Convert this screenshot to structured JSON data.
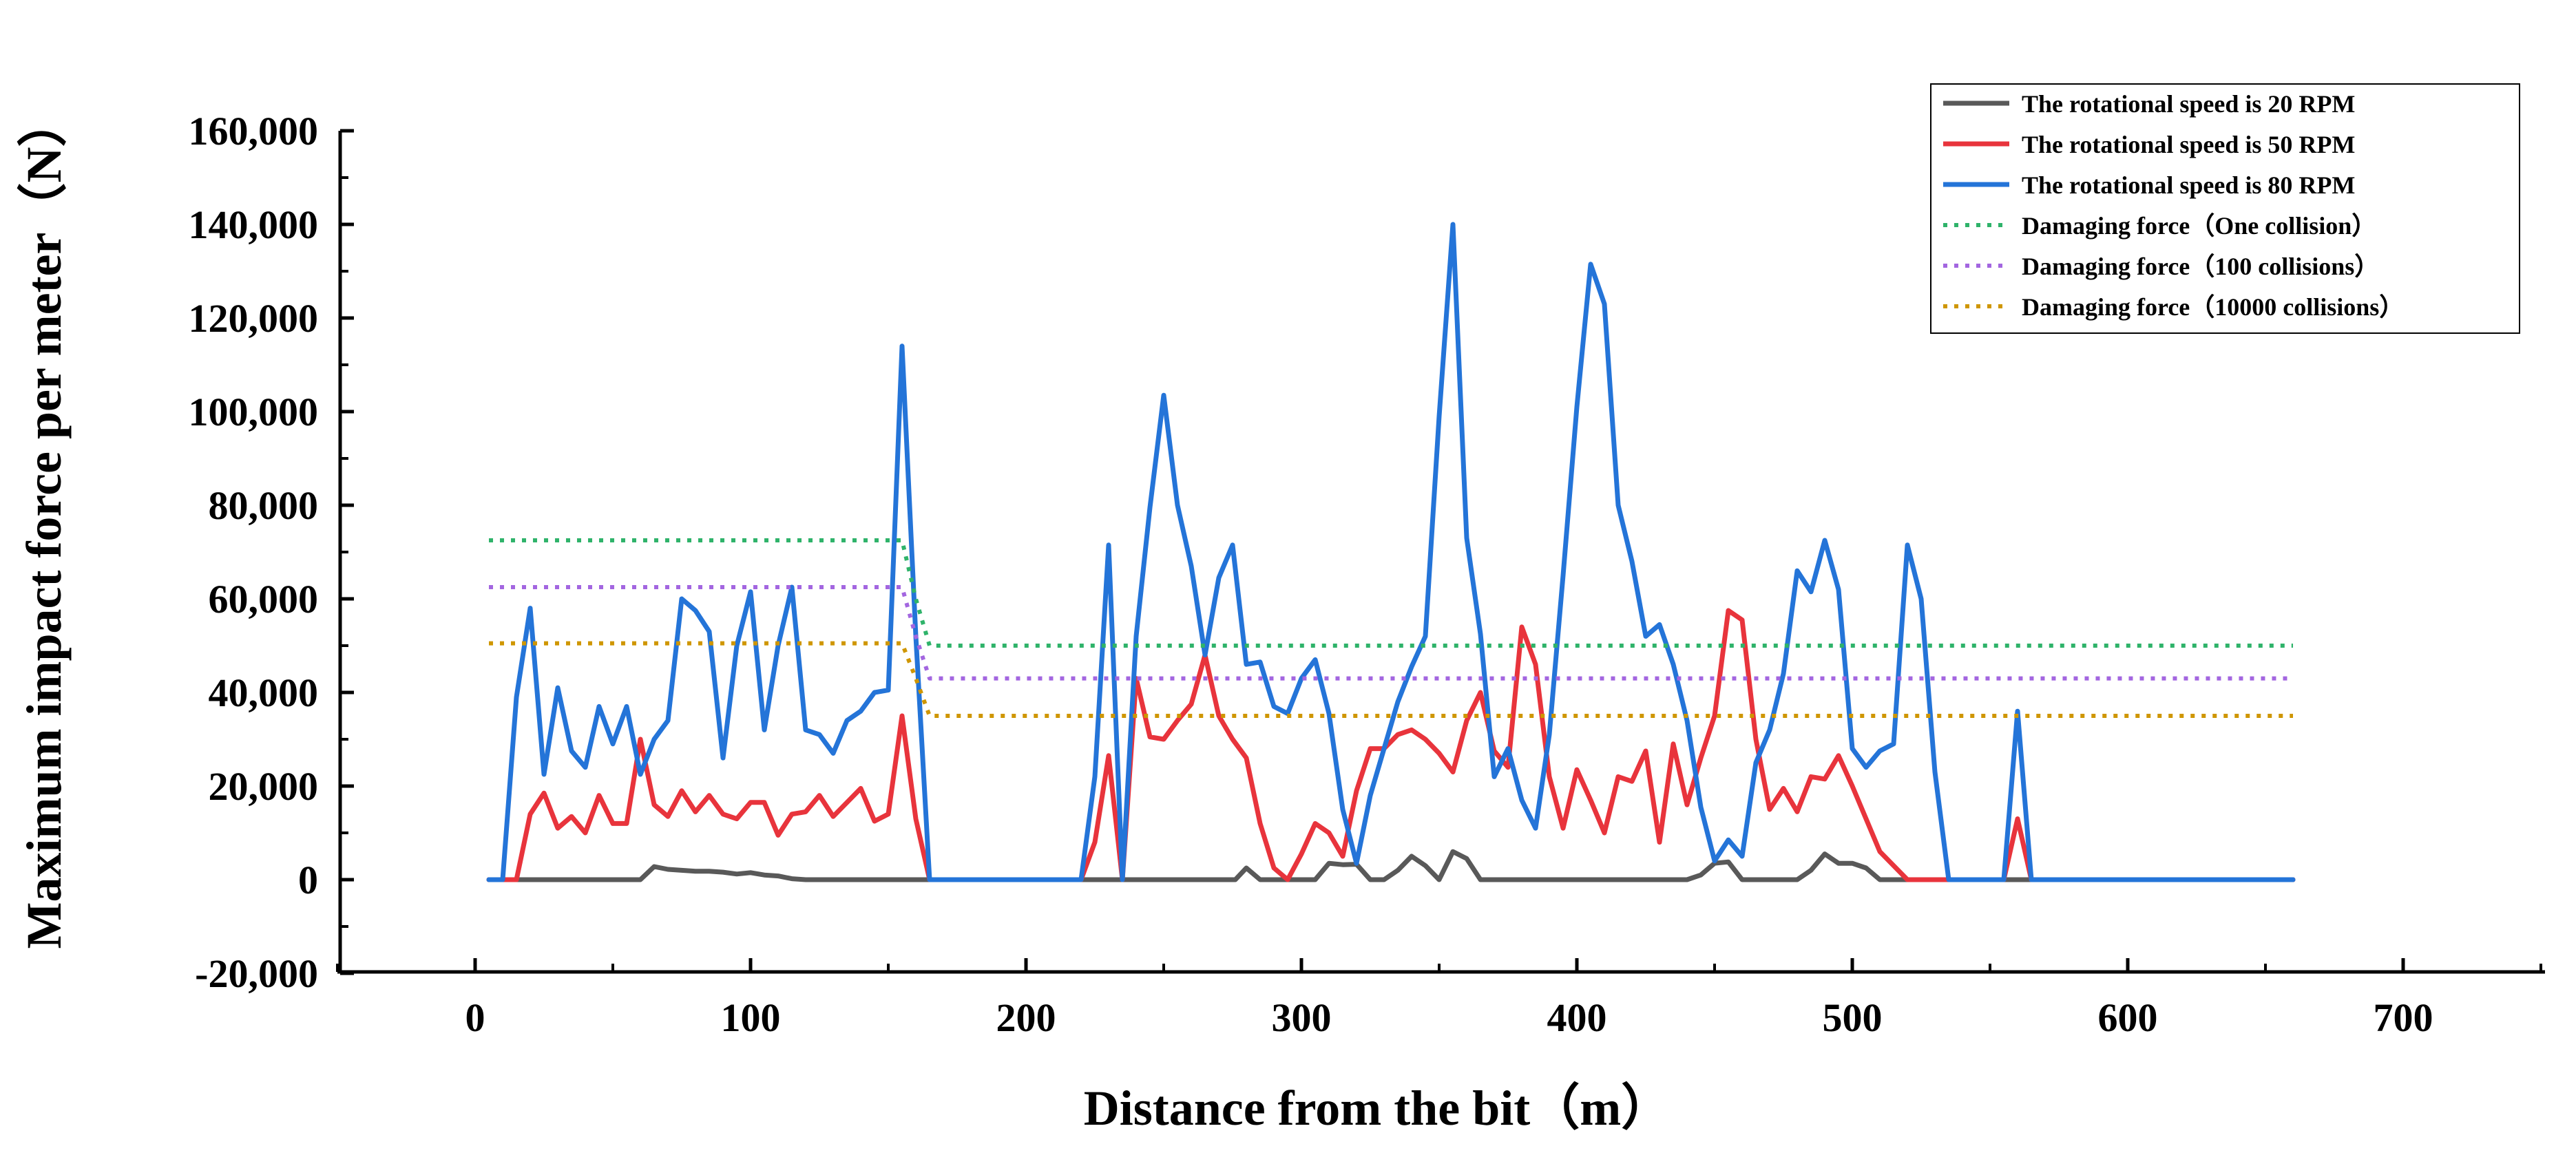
{
  "chart_data": {
    "type": "line",
    "title": "",
    "xlabel": "Distance from the bit（m）",
    "ylabel": "Maximum impact force per meter（N）",
    "xlim": [
      -50,
      755
    ],
    "ylim": [
      -20000,
      160000
    ],
    "xticks": [
      0,
      100,
      200,
      300,
      400,
      500,
      600,
      700
    ],
    "xtick_labels": [
      "0",
      "100",
      "200",
      "300",
      "400",
      "500",
      "600",
      "700"
    ],
    "yticks": [
      -20000,
      0,
      20000,
      40000,
      60000,
      80000,
      100000,
      120000,
      140000,
      160000
    ],
    "ytick_labels": [
      "-20,000",
      "0",
      "20,000",
      "40,000",
      "60,000",
      "80,000",
      "100,000",
      "120,000",
      "140,000",
      "160,000"
    ],
    "grid": false,
    "legend_position": "top-right",
    "series": [
      {
        "name": "The rotational speed is 20 RPM",
        "color": "#595959",
        "style": "solid",
        "x": [
          5,
          10,
          20,
          30,
          40,
          50,
          60,
          65,
          70,
          75,
          80,
          85,
          90,
          95,
          100,
          105,
          110,
          115,
          120,
          130,
          140,
          150,
          160,
          165,
          200,
          240,
          270,
          276,
          280,
          285,
          300,
          305,
          310,
          315,
          320,
          325,
          330,
          335,
          340,
          345,
          350,
          355,
          360,
          365,
          370,
          380,
          400,
          420,
          440,
          445,
          450,
          455,
          460,
          470,
          480,
          485,
          490,
          495,
          500,
          505,
          510,
          520,
          540,
          560,
          600,
          660
        ],
        "y": [
          0,
          0,
          0,
          0,
          0,
          0,
          0,
          2800,
          2200,
          2000,
          1800,
          1800,
          1600,
          1200,
          1500,
          1000,
          800,
          200,
          0,
          0,
          0,
          0,
          0,
          0,
          0,
          0,
          0,
          0,
          2500,
          0,
          0,
          0,
          3500,
          3200,
          3300,
          0,
          0,
          2000,
          5000,
          3000,
          0,
          6000,
          4500,
          0,
          0,
          0,
          0,
          0,
          0,
          1000,
          3500,
          3800,
          0,
          0,
          0,
          2000,
          5500,
          3500,
          3500,
          2500,
          0,
          0,
          0,
          0,
          0,
          0
        ]
      },
      {
        "name": "The rotational speed is 50 RPM",
        "color": "#e8343c",
        "style": "solid",
        "x": [
          5,
          15,
          20,
          25,
          30,
          35,
          40,
          45,
          50,
          55,
          60,
          65,
          70,
          75,
          80,
          85,
          90,
          95,
          100,
          105,
          110,
          115,
          120,
          125,
          130,
          135,
          140,
          145,
          150,
          155,
          160,
          165,
          220,
          225,
          230,
          235,
          240,
          245,
          250,
          255,
          260,
          265,
          270,
          275,
          280,
          285,
          290,
          295,
          300,
          305,
          310,
          315,
          320,
          325,
          330,
          335,
          340,
          345,
          350,
          355,
          360,
          365,
          370,
          375,
          380,
          385,
          390,
          395,
          400,
          405,
          410,
          415,
          420,
          425,
          430,
          435,
          440,
          445,
          450,
          455,
          460,
          465,
          470,
          475,
          480,
          485,
          490,
          495,
          500,
          505,
          510,
          520,
          535,
          555,
          560,
          565,
          600,
          660
        ],
        "y": [
          0,
          0,
          14000,
          18500,
          11000,
          13500,
          10000,
          18000,
          12000,
          12000,
          30000,
          16000,
          13500,
          19000,
          14500,
          18000,
          14000,
          13000,
          16500,
          16500,
          9500,
          14000,
          14500,
          18000,
          13500,
          16500,
          19500,
          12500,
          14000,
          35000,
          13000,
          0,
          0,
          8000,
          26500,
          0,
          43000,
          30500,
          30000,
          34000,
          37500,
          48000,
          35000,
          30000,
          26000,
          12000,
          2500,
          0,
          5500,
          12000,
          10000,
          5000,
          19000,
          28000,
          28000,
          31000,
          32000,
          30000,
          27000,
          23000,
          34000,
          40000,
          27500,
          24000,
          54000,
          46000,
          22000,
          11000,
          23500,
          17000,
          10000,
          22000,
          21000,
          27500,
          8000,
          29000,
          16000,
          26000,
          35000,
          57500,
          55500,
          30000,
          15000,
          19500,
          14500,
          22000,
          21500,
          26500,
          20000,
          13000,
          6000,
          0,
          0,
          0,
          13000,
          0,
          0,
          0
        ]
      },
      {
        "name": "The rotational speed is 80 RPM",
        "color": "#2474d8",
        "style": "solid",
        "x": [
          5,
          10,
          15,
          20,
          25,
          30,
          35,
          40,
          45,
          50,
          55,
          60,
          65,
          70,
          75,
          80,
          85,
          90,
          95,
          100,
          105,
          110,
          115,
          120,
          125,
          130,
          135,
          140,
          145,
          150,
          155,
          160,
          165,
          220,
          225,
          230,
          235,
          240,
          245,
          250,
          255,
          260,
          265,
          270,
          275,
          280,
          285,
          290,
          295,
          300,
          305,
          310,
          315,
          320,
          325,
          330,
          335,
          340,
          345,
          350,
          355,
          360,
          365,
          370,
          375,
          380,
          385,
          390,
          395,
          400,
          405,
          410,
          415,
          420,
          425,
          430,
          435,
          440,
          445,
          450,
          455,
          460,
          465,
          470,
          475,
          480,
          485,
          490,
          495,
          500,
          505,
          510,
          515,
          520,
          525,
          530,
          535,
          555,
          560,
          565,
          600,
          660
        ],
        "y": [
          0,
          0,
          39000,
          58000,
          22500,
          41000,
          27500,
          24000,
          37000,
          29000,
          37000,
          22500,
          30000,
          34000,
          60000,
          57500,
          53000,
          26000,
          50000,
          61500,
          32000,
          50000,
          62500,
          32000,
          31000,
          27000,
          34000,
          36000,
          40000,
          40500,
          114000,
          52000,
          0,
          0,
          22000,
          71500,
          0,
          52000,
          79500,
          103500,
          80000,
          67000,
          48000,
          64500,
          71500,
          46000,
          46500,
          37000,
          35500,
          43000,
          47000,
          35500,
          15000,
          3500,
          18000,
          28000,
          38000,
          45500,
          52000,
          99000,
          140000,
          73000,
          52500,
          22000,
          28000,
          17000,
          11000,
          31000,
          65000,
          101000,
          131500,
          123000,
          80000,
          68000,
          52000,
          54500,
          46000,
          34000,
          15500,
          4000,
          8500,
          5000,
          25000,
          32000,
          44000,
          66000,
          61500,
          72500,
          62000,
          28000,
          24000,
          27500,
          29000,
          71500,
          60000,
          23000,
          0,
          0,
          36000,
          0,
          0,
          0
        ]
      },
      {
        "name": "Damaging force（One collision）",
        "color": "#2fb36a",
        "style": "dotted",
        "x": [
          5,
          155,
          160,
          165,
          660
        ],
        "y": [
          72500,
          72500,
          60000,
          50000,
          50000
        ]
      },
      {
        "name": "Damaging force（100 collisions）",
        "color": "#a366e0",
        "style": "dotted",
        "x": [
          5,
          155,
          160,
          165,
          660
        ],
        "y": [
          62500,
          62500,
          52000,
          43000,
          43000
        ]
      },
      {
        "name": "Damaging force（10000 collisions）",
        "color": "#cf9600",
        "style": "dotted",
        "x": [
          5,
          155,
          160,
          165,
          660
        ],
        "y": [
          50500,
          50500,
          43000,
          35000,
          35000
        ]
      }
    ]
  }
}
